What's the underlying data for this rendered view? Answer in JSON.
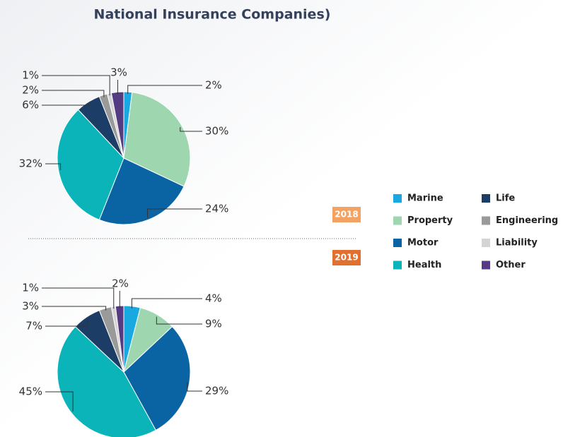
{
  "title": "National Insurance Companies)",
  "legend": {
    "categories": [
      "Marine",
      "Property",
      "Motor",
      "Health",
      "Life",
      "Engineering",
      "Liability",
      "Other"
    ],
    "colors": [
      "#19a9e1",
      "#9ed6b0",
      "#0a64a4",
      "#0ab4b8",
      "#1b3d66",
      "#9a9a9a",
      "#d4d4d4",
      "#553b82"
    ]
  },
  "chart_data": [
    {
      "type": "pie",
      "label": "2018",
      "values": [
        2,
        30,
        24,
        32,
        6,
        2,
        1,
        3
      ],
      "value_labels": [
        "2%",
        "30%",
        "24%",
        "32%",
        "6%",
        "2%",
        "1%",
        "3%"
      ]
    },
    {
      "type": "pie",
      "label": "2019",
      "values": [
        4,
        9,
        29,
        45,
        7,
        3,
        1,
        2
      ],
      "value_labels": [
        "4%",
        "9%",
        "29%",
        "45%",
        "7%",
        "3%",
        "1%",
        "2%"
      ]
    }
  ]
}
